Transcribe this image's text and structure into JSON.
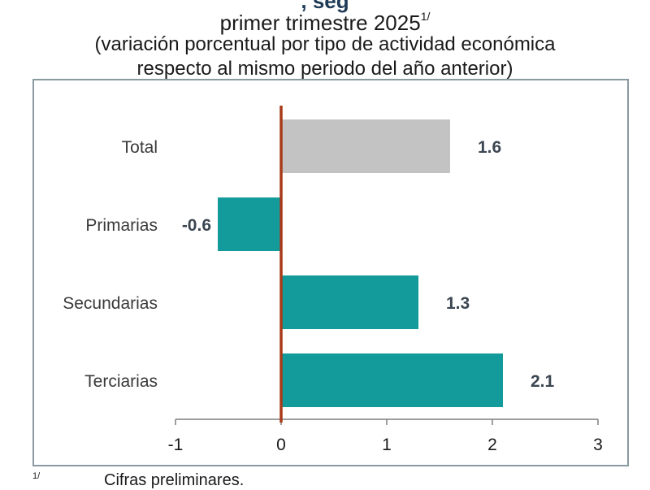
{
  "header": {
    "title_partial": ", seg",
    "title_line": "primer trimestre 2025",
    "title_sup": "1/",
    "subtitle_line1": "(variación porcentual por tipo de actividad económica",
    "subtitle_line2": "respecto al mismo periodo del año anterior)"
  },
  "footnote": {
    "mark": "1/",
    "text": "Cifras preliminares."
  },
  "colors": {
    "total_bar": "#c3c3c3",
    "sector_bar": "#139a9a",
    "zero_line": "#a83a1a",
    "axis": "#7f7f7f",
    "label": "#3a3a3a",
    "value_label": "#3b4652"
  },
  "chart_data": {
    "type": "bar",
    "orientation": "horizontal",
    "title": "primer trimestre 2025",
    "subtitle": "(variación porcentual por tipo de actividad económica respecto al mismo periodo del año anterior)",
    "categories": [
      "Total",
      "Primarias",
      "Secundarias",
      "Terciarias"
    ],
    "values": [
      1.6,
      -0.6,
      1.3,
      2.1
    ],
    "value_labels": [
      "1.6",
      "-0.6",
      "1.3",
      "2.1"
    ],
    "bar_colors": [
      "#c3c3c3",
      "#139a9a",
      "#139a9a",
      "#139a9a"
    ],
    "xlim": [
      -1,
      3
    ],
    "xticks": [
      "-1",
      "0",
      "1",
      "2",
      "3"
    ],
    "xlabel": "",
    "ylabel": "",
    "grid": false,
    "legend": "none"
  }
}
